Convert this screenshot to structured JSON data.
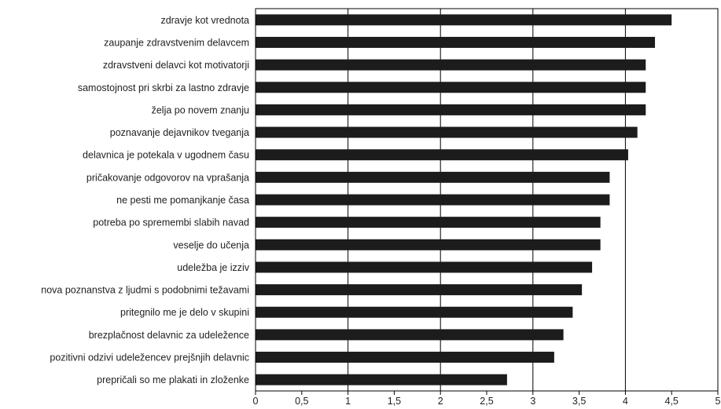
{
  "chart_data": {
    "type": "bar",
    "orientation": "horizontal",
    "categories": [
      "zdravje kot vrednota",
      "zaupanje zdravstvenim delavcem",
      "zdravstveni delavci kot motivatorji",
      "samostojnost pri skrbi za lastno zdravje",
      "želja po novem znanju",
      "poznavanje dejavnikov tveganja",
      "delavnica je potekala v ugodnem času",
      "pričakovanje odgovorov na vprašanja",
      "ne pesti me pomanjkanje časa",
      "potreba po spremembi slabih navad",
      "veselje do učenja",
      "udeležba je izziv",
      "nova poznanstva z ljudmi s podobnimi težavami",
      "pritegnilo me je delo v skupini",
      "brezplačnost delavnic za udeležence",
      "pozitivni odzivi udeležencev prejšnjih delavnic",
      "prepričali so me plakati in zloženke"
    ],
    "values": [
      4.5,
      4.32,
      4.22,
      4.22,
      4.22,
      4.13,
      4.03,
      3.83,
      3.83,
      3.73,
      3.73,
      3.64,
      3.53,
      3.43,
      3.33,
      3.23,
      2.72
    ],
    "xlim": [
      0,
      5
    ],
    "xticks": [
      "0",
      "0,5",
      "1",
      "1,5",
      "2",
      "2,5",
      "3",
      "3,5",
      "4",
      "4,5",
      "5"
    ],
    "xtick_values": [
      0,
      0.5,
      1,
      1.5,
      2,
      2.5,
      3,
      3.5,
      4,
      4.5,
      5
    ],
    "grid": "vertical lines at integer values",
    "title": "",
    "xlabel": "",
    "ylabel": ""
  },
  "colors": {
    "bar": "#1c1c1c",
    "axis": "#000000",
    "grid": "#000000",
    "text": "#222222"
  }
}
